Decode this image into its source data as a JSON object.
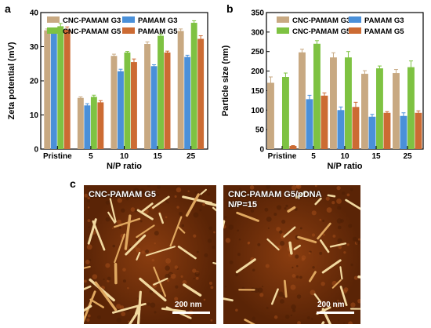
{
  "panel_labels": {
    "a": "a",
    "b": "b",
    "c": "c"
  },
  "colors": {
    "CNC-PAMAM G3": "#c8a982",
    "PAMAM G3": "#4a90d9",
    "CNC-PAMAM G5": "#7ec242",
    "PAMAM G5": "#cc6b33"
  },
  "chart_data": [
    {
      "type": "bar",
      "panel": "a",
      "xlabel": "N/P ratio",
      "ylabel": "Zeta potential (mV)",
      "ylim": [
        0,
        40
      ],
      "yticks": [
        0,
        10,
        20,
        30,
        40
      ],
      "categories": [
        "Pristine",
        "5",
        "10",
        "15",
        "25"
      ],
      "legend": "top",
      "series": [
        {
          "name": "CNC-PAMAM G3",
          "values": [
            34.8,
            15.0,
            27.3,
            30.8,
            34.6
          ],
          "errors": [
            0.4,
            0.3,
            0.5,
            0.6,
            0.6
          ]
        },
        {
          "name": "PAMAM G3",
          "values": [
            34.0,
            12.8,
            22.8,
            24.3,
            27.0
          ],
          "errors": [
            0.6,
            0.5,
            0.6,
            0.4,
            0.5
          ]
        },
        {
          "name": "CNC-PAMAM G5",
          "values": [
            36.0,
            15.3,
            28.3,
            33.2,
            37.0
          ],
          "errors": [
            0.8,
            0.5,
            0.3,
            0.5,
            0.6
          ]
        },
        {
          "name": "PAMAM G5",
          "values": [
            35.0,
            13.7,
            25.5,
            28.3,
            32.3
          ],
          "errors": [
            0.8,
            0.5,
            0.9,
            0.4,
            0.9
          ]
        }
      ]
    },
    {
      "type": "bar",
      "panel": "b",
      "xlabel": "N/P ratio",
      "ylabel": "Particle size (nm)",
      "ylim": [
        0,
        350
      ],
      "yticks": [
        0,
        50,
        100,
        150,
        200,
        250,
        300,
        350
      ],
      "categories": [
        "Pristine",
        "5",
        "10",
        "15",
        "25"
      ],
      "legend": "top",
      "series": [
        {
          "name": "CNC-PAMAM G3",
          "values": [
            170,
            248,
            235,
            193,
            195
          ],
          "errors": [
            15,
            8,
            12,
            8,
            9
          ]
        },
        {
          "name": "PAMAM G3",
          "values": [
            0,
            128,
            100,
            83,
            85
          ],
          "errors": [
            0,
            10,
            8,
            6,
            8
          ]
        },
        {
          "name": "CNC-PAMAM G5",
          "values": [
            185,
            270,
            235,
            207,
            210
          ],
          "errors": [
            10,
            8,
            15,
            6,
            16
          ]
        },
        {
          "name": "PAMAM G5",
          "values": [
            8,
            137,
            108,
            93,
            93
          ],
          "errors": [
            1,
            7,
            12,
            3,
            5
          ]
        }
      ]
    }
  ],
  "afm_images": [
    {
      "label": "CNC-PAMAM G5",
      "scale_text": "200 nm"
    },
    {
      "label": "CNC-PAMAM G5/pDNA\nN/P=15",
      "scale_text": "200 nm"
    }
  ]
}
